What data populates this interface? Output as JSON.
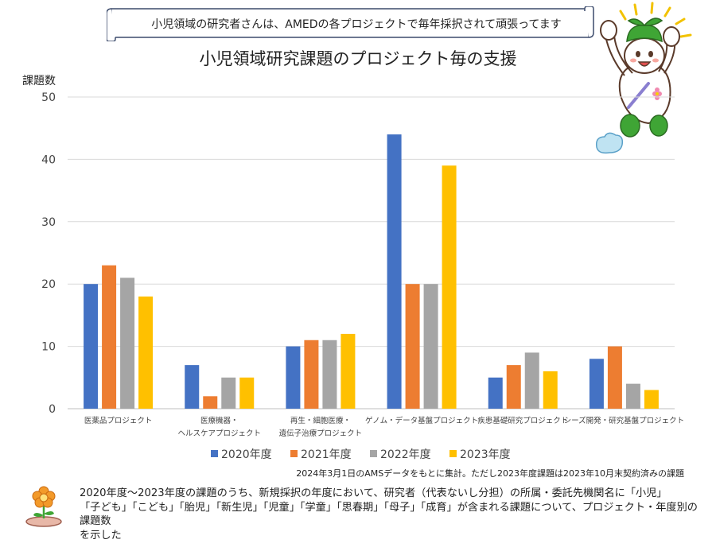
{
  "banner": {
    "text": "小児領域の研究者さんは、AMEDの各プロジェクトで毎年採択されて頑張ってます"
  },
  "chart_data": {
    "type": "bar",
    "title": "小児領域研究課題のプロジェクト毎の支援",
    "ylabel": "課題数",
    "xlabel": "",
    "ylim": [
      0,
      50
    ],
    "yticks": [
      0,
      10,
      20,
      30,
      40,
      50
    ],
    "grid": true,
    "legend_position": "bottom",
    "categories": [
      [
        "医薬品プロジェクト"
      ],
      [
        "医療機器・",
        "ヘルスケアプロジェクト"
      ],
      [
        "再生・細胞医療・",
        "遺伝子治療プロジェクト"
      ],
      [
        "ゲノム・データ基盤プロジェクト"
      ],
      [
        "疾患基礎研究プロジェクト"
      ],
      [
        "シーズ開発・研究基盤プロジェクト"
      ]
    ],
    "series": [
      {
        "name": "2020年度",
        "color": "#4472C4",
        "values": [
          20,
          7,
          10,
          44,
          5,
          8
        ]
      },
      {
        "name": "2021年度",
        "color": "#ED7D31",
        "values": [
          23,
          2,
          11,
          20,
          7,
          10
        ]
      },
      {
        "name": "2022年度",
        "color": "#A5A5A5",
        "values": [
          21,
          5,
          11,
          20,
          9,
          4
        ]
      },
      {
        "name": "2023年度",
        "color": "#FFC000",
        "values": [
          18,
          5,
          12,
          39,
          6,
          3
        ]
      }
    ]
  },
  "note": "2024年3月1日のAMSデータをもとに集計。ただし2023年度課題は2023年10月末契約済みの課題",
  "caption": {
    "lines": [
      "2020年度～2023年度の課題のうち、新規採択の年度において、研究者（代表ないし分担）の所属・委託先機関名に「小児」",
      "「子ども」「こども」「胎児」「新生児」「児童」「学童」「思春期」「母子」「成育」が含まれる課題について、プロジェクト・年度別の課題数",
      "を示した"
    ]
  }
}
